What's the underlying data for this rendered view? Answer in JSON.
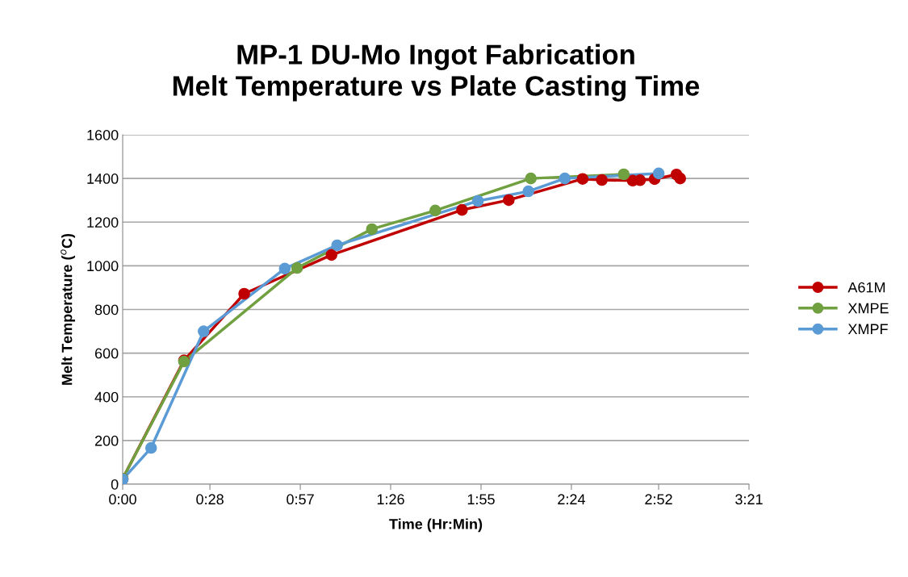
{
  "chart_data": {
    "type": "line",
    "title": "MP-1 DU-Mo Ingot Fabrication\nMelt Temperature vs Plate Casting Time",
    "xlabel": "Time (Hr:Min)",
    "ylabel": "Melt Temperature ($^{o}$C)",
    "series": [
      {
        "name": "A61M",
        "color": "#c00000",
        "x": [
          0,
          0.328,
          0.65,
          1.117,
          1.815,
          2.065,
          2.46,
          2.563,
          2.728,
          2.767,
          2.845,
          2.962,
          2.982
        ],
        "values": [
          25,
          567,
          872,
          1050,
          1256,
          1301,
          1398,
          1393,
          1390,
          1392,
          1397,
          1418,
          1400
        ]
      },
      {
        "name": "XMPE",
        "color": "#70a040",
        "x": [
          0,
          0.328,
          0.933,
          1.333,
          1.672,
          2.183,
          2.68
        ],
        "values": [
          25,
          562,
          990,
          1168,
          1253,
          1400,
          1419
        ]
      },
      {
        "name": "XMPF",
        "color": "#5b9bd5",
        "x": [
          0,
          0.152,
          0.433,
          0.867,
          1.147,
          1.9,
          2.17,
          2.365,
          2.867
        ],
        "values": [
          22,
          166,
          700,
          987,
          1094,
          1297,
          1341,
          1400,
          1423
        ]
      }
    ],
    "xlim": [
      0,
      3.35
    ],
    "xticks": [
      {
        "value": 0,
        "label": "0:00"
      },
      {
        "value": 0.4667,
        "label": "0:28"
      },
      {
        "value": 0.95,
        "label": "0:57"
      },
      {
        "value": 1.4333,
        "label": "1:26"
      },
      {
        "value": 1.9167,
        "label": "1:55"
      },
      {
        "value": 2.4,
        "label": "2:24"
      },
      {
        "value": 2.8667,
        "label": "2:52"
      },
      {
        "value": 3.35,
        "label": "3:21"
      }
    ],
    "ylim": [
      0,
      1600
    ],
    "yticks": [
      0,
      200,
      400,
      600,
      800,
      1000,
      1200,
      1400,
      1600
    ],
    "grid": "y",
    "legend": "right",
    "marker": "circle",
    "line_style": "solid"
  }
}
